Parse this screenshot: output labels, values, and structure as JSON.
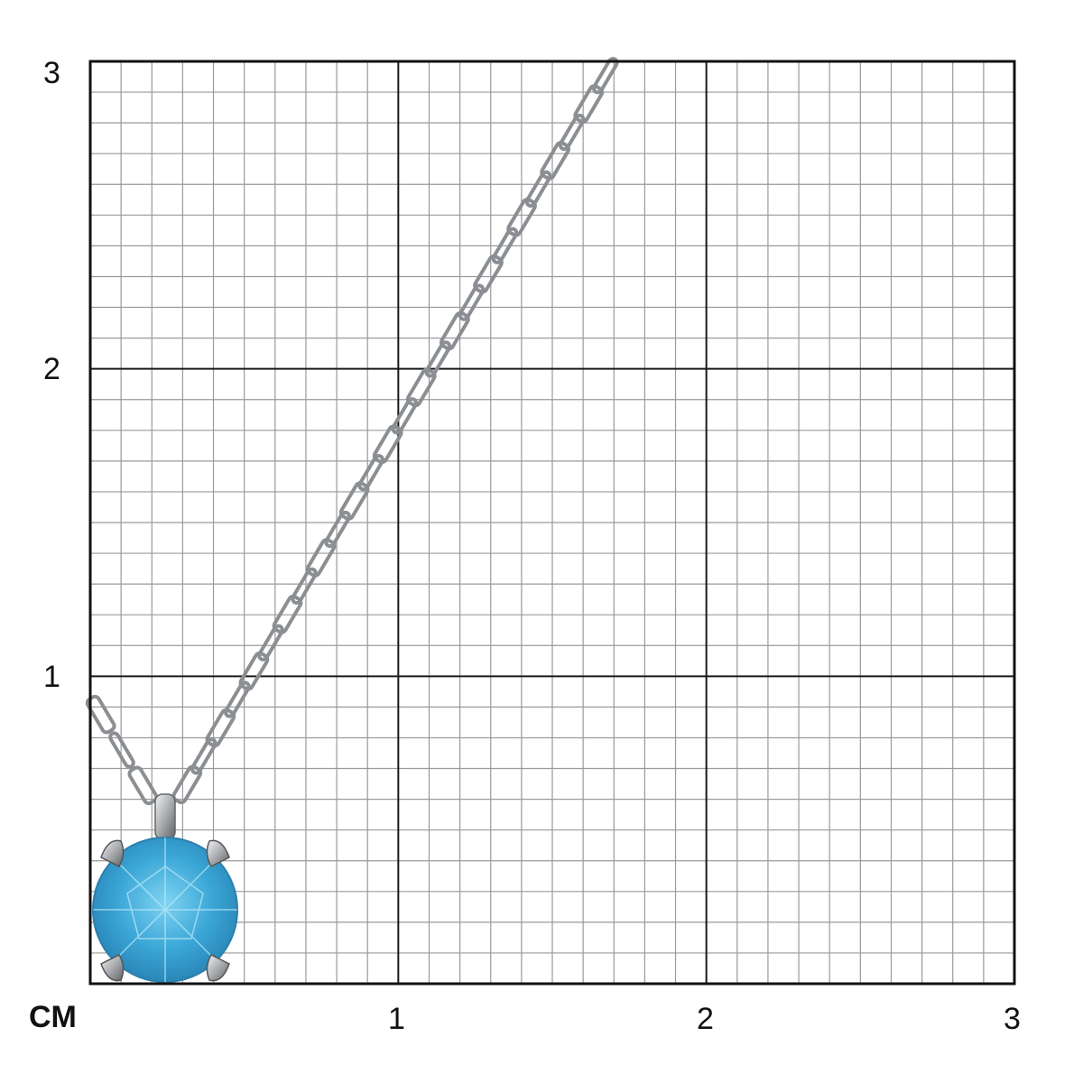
{
  "scale": {
    "unit_label": "CM",
    "x_ticks": [
      "1",
      "2",
      "3"
    ],
    "y_ticks": [
      "1",
      "2",
      "3"
    ],
    "minor_divisions_per_unit": 10,
    "range_cm": [
      0,
      3
    ]
  },
  "product": {
    "type": "pendant necklace",
    "stone_color": "#3aa6d6",
    "metal_color": "#c8cacc"
  }
}
